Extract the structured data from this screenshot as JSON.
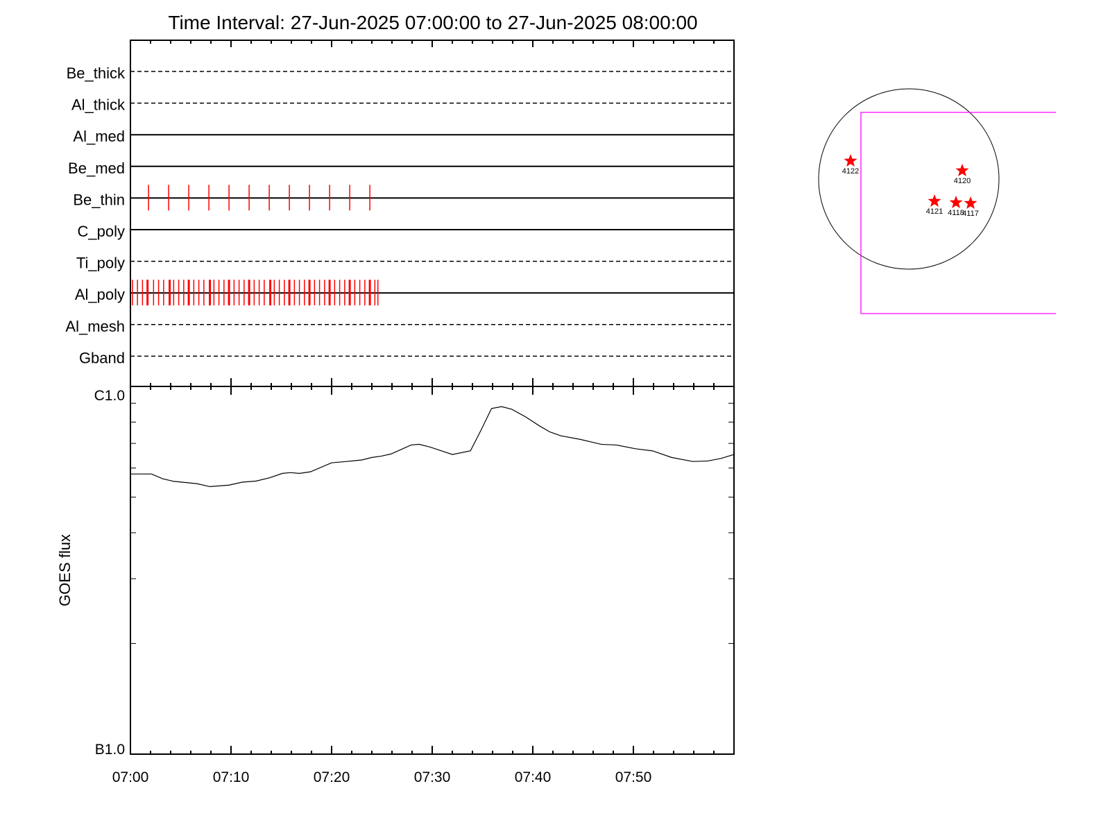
{
  "chart_data": [
    {
      "type": "table",
      "title": "Time Interval: 27-Jun-2025 07:00:00 to 27-Jun-2025 08:00:00",
      "rows": [
        {
          "label": "Be_thick",
          "style": "dashed",
          "exposures_min": []
        },
        {
          "label": "Al_thick",
          "style": "dashed",
          "exposures_min": []
        },
        {
          "label": "Al_med",
          "style": "solid",
          "exposures_min": []
        },
        {
          "label": "Be_med",
          "style": "solid",
          "exposures_min": []
        },
        {
          "label": "Be_thin",
          "style": "solid",
          "exposures_min": [
            1.8,
            3.8,
            5.8,
            7.8,
            9.8,
            11.8,
            13.8,
            15.8,
            17.8,
            19.8,
            21.8,
            23.8
          ]
        },
        {
          "label": "C_poly",
          "style": "solid",
          "exposures_min": []
        },
        {
          "label": "Ti_poly",
          "style": "dashed",
          "exposures_min": []
        },
        {
          "label": "Al_poly",
          "style": "solid",
          "exposures_min": [
            0.2,
            0.7,
            1.2,
            1.7,
            2.3,
            2.8,
            3.3,
            3.9,
            4.3,
            4.8,
            5.3,
            5.8,
            6.3,
            6.8,
            7.3,
            7.9,
            8.3,
            8.8,
            9.3,
            9.8,
            10.3,
            10.8,
            11.3,
            11.8,
            12.3,
            12.8,
            13.3,
            13.9,
            14.3,
            14.8,
            15.3,
            15.8,
            16.3,
            16.8,
            17.3,
            17.8,
            18.3,
            18.8,
            19.3,
            19.8,
            20.3,
            20.8,
            21.3,
            21.8,
            22.3,
            22.8,
            23.3,
            23.8,
            24.3,
            24.6
          ]
        },
        {
          "label": "Al_mesh",
          "style": "dashed",
          "exposures_min": []
        },
        {
          "label": "Gband",
          "style": "dashed",
          "exposures_min": []
        }
      ],
      "exposure_color": "#ff0000"
    },
    {
      "type": "line",
      "ylabel": "GOES flux",
      "yscale": "log",
      "ylim": [
        1e-07,
        1e-06
      ],
      "ytick_labels": [
        {
          "value": 1e-06,
          "label": "C1.0"
        },
        {
          "value": 1e-07,
          "label": "B1.0"
        }
      ],
      "xlim_min": [
        0,
        60
      ],
      "xtick_labels": [
        "07:00",
        "07:10",
        "07:20",
        "07:30",
        "07:40",
        "07:50"
      ],
      "line_color": "#000000",
      "x_min": [
        0,
        2.1,
        3.2,
        4.3,
        6.6,
        7.9,
        9.8,
        11.1,
        12.5,
        13.8,
        15.1,
        15.9,
        16.8,
        17.9,
        20.0,
        21.5,
        23.0,
        24.0,
        24.9,
        25.9,
        27.9,
        28.7,
        29.8,
        32.0,
        33.8,
        34.9,
        35.9,
        36.9,
        37.9,
        39.3,
        40.6,
        41.7,
        42.8,
        44.7,
        46.8,
        48.3,
        50.2,
        51.9,
        53.8,
        55.9,
        57.4,
        58.7,
        60.0
      ],
      "y_flux": [
        5.78e-07,
        5.78e-07,
        5.61e-07,
        5.52e-07,
        5.44e-07,
        5.34e-07,
        5.39e-07,
        5.49e-07,
        5.53e-07,
        5.64e-07,
        5.8e-07,
        5.83e-07,
        5.8e-07,
        5.86e-07,
        6.2e-07,
        6.25e-07,
        6.31e-07,
        6.41e-07,
        6.46e-07,
        6.55e-07,
        6.93e-07,
        6.96e-07,
        6.84e-07,
        6.53e-07,
        6.68e-07,
        7.65e-07,
        8.71e-07,
        8.81e-07,
        8.67e-07,
        8.26e-07,
        7.83e-07,
        7.52e-07,
        7.34e-07,
        7.18e-07,
        6.96e-07,
        6.93e-07,
        6.77e-07,
        6.68e-07,
        6.41e-07,
        6.25e-07,
        6.27e-07,
        6.37e-07,
        6.53e-07
      ]
    },
    {
      "type": "scatter",
      "marker_color": "#ff0000",
      "fov_color": "#ff00ff",
      "active_regions": [
        {
          "label": "4122"
        },
        {
          "label": "4120"
        },
        {
          "label": "4121"
        },
        {
          "label": "4118"
        },
        {
          "label": "4117"
        }
      ]
    }
  ]
}
